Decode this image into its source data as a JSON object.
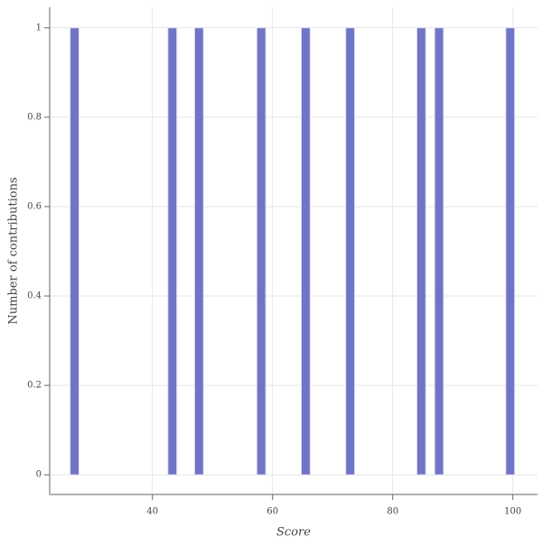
{
  "chart_data": {
    "type": "histogram",
    "x_label": "Score",
    "y_label": "Number of contributions",
    "bins": [
      26.3,
      27.78,
      29.26,
      30.74,
      32.22,
      33.7,
      35.18,
      36.66,
      38.14,
      39.62,
      41.1,
      42.58,
      44.06,
      45.54,
      47.02,
      48.5,
      49.98,
      51.46,
      52.94,
      54.42,
      55.9,
      57.38,
      58.86,
      60.34,
      61.82,
      63.3,
      64.78,
      66.26,
      67.74,
      69.22,
      70.7,
      72.18,
      73.66,
      75.14,
      76.62,
      78.1,
      79.58,
      81.06,
      82.54,
      84.02,
      85.5,
      86.98,
      88.46,
      89.94,
      91.42,
      92.9,
      94.38,
      95.86,
      97.34,
      98.82,
      100.3
    ],
    "values": [
      1,
      0,
      0,
      0,
      0,
      0,
      0,
      0,
      0,
      0,
      0,
      1,
      0,
      0,
      1,
      0,
      0,
      0,
      0,
      0,
      0,
      1,
      0,
      0,
      0,
      0,
      1,
      0,
      0,
      0,
      0,
      1,
      0,
      0,
      0,
      0,
      0,
      0,
      0,
      1,
      0,
      1,
      0,
      0,
      0,
      0,
      0,
      0,
      0,
      1
    ],
    "color": "#6f74c6",
    "xlim": [
      22.9,
      104.1
    ],
    "xticks": [
      40,
      60,
      80,
      100
    ],
    "ylim": [
      -0.044,
      1.046
    ],
    "yticks": [
      0,
      0.2,
      0.4,
      0.6,
      0.8,
      1
    ],
    "grid": true
  }
}
